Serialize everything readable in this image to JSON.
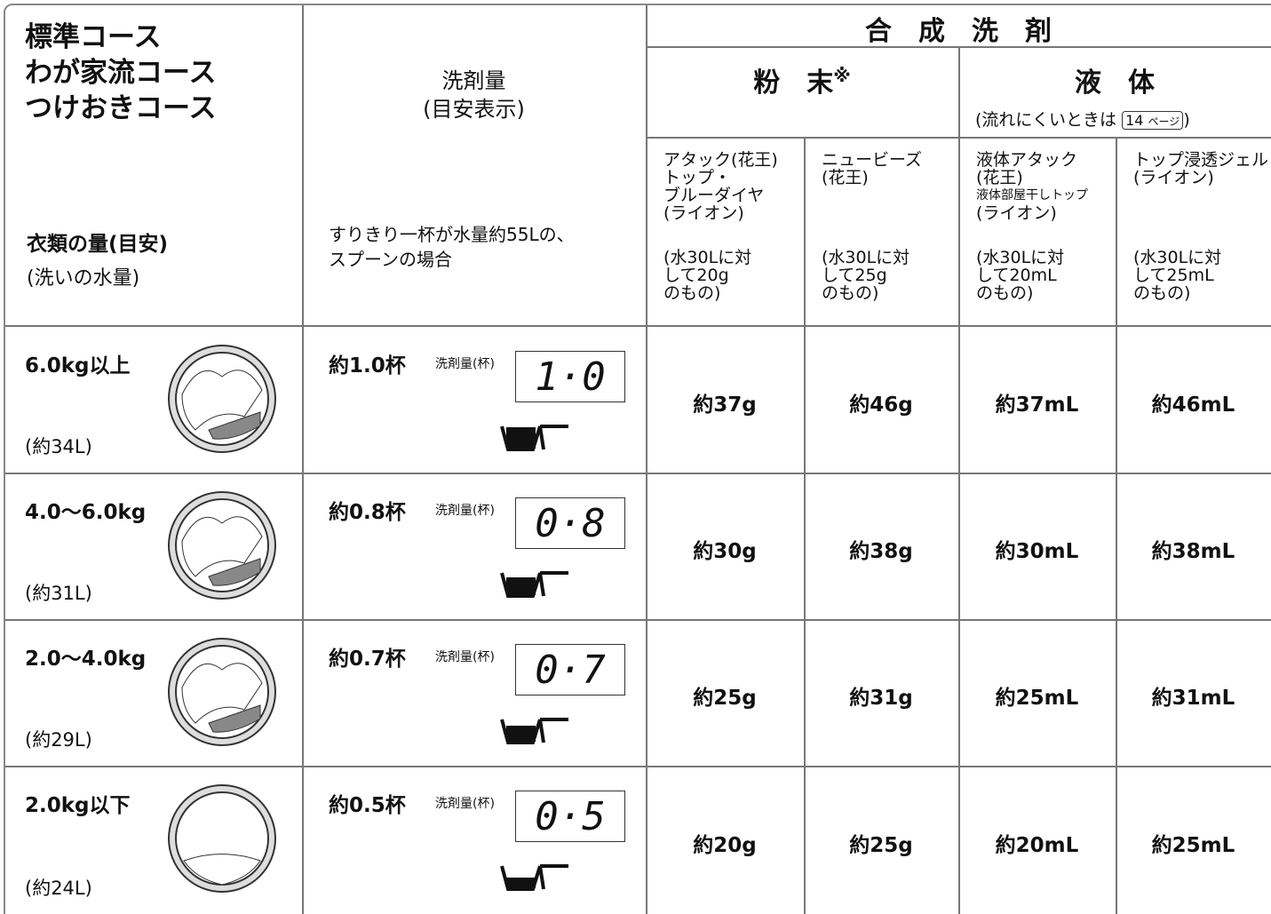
{
  "header": {
    "courses": [
      "標準コース",
      "わが家流コース",
      "つけおきコース"
    ],
    "load_label": "衣類の量(目安)",
    "load_sub": "(洗いの水量)",
    "amount_title": "洗剤量",
    "amount_sub": "(目安表示)",
    "amount_note": [
      "すりきり一杯が水量約55Lの、",
      "スプーンの場合"
    ],
    "synthetic": "合　成　洗　剤",
    "powder": "粉　末",
    "powder_mark": "※",
    "liquid": "液　体",
    "liquid_note_prefix": "(流れにくいときは",
    "page_ref": "14",
    "page_ref_unit": "ページ",
    "liquid_note_suffix": ")",
    "products": [
      {
        "lines": [
          "アタック(花王)",
          "トップ・",
          "ブルーダイヤ",
          "(ライオン)"
        ],
        "spec": [
          "(水30Lに対",
          "して20g",
          "のもの)"
        ]
      },
      {
        "lines": [
          "ニュービーズ",
          "(花王)"
        ],
        "spec": [
          "(水30Lに対",
          "して25g",
          "のもの)"
        ]
      },
      {
        "lines": [
          "液体アタック",
          "(花王)",
          "液体部屋干しトップ",
          "(ライオン)"
        ],
        "spec": [
          "(水30Lに対",
          "して20mL",
          "のもの)"
        ]
      },
      {
        "lines": [
          "トップ浸透ジェル",
          "(ライオン)"
        ],
        "spec": [
          "(水30Lに対",
          "して25mL",
          "のもの)"
        ]
      }
    ]
  },
  "rows": [
    {
      "load": "6.0kg以上",
      "water": "(約34L)",
      "cups": "約1.0杯",
      "display_label": "洗剤量(杯)",
      "display": "1·0",
      "amounts": [
        "約37g",
        "約46g",
        "約37mL",
        "約46mL"
      ]
    },
    {
      "load": "4.0〜6.0kg",
      "water": "(約31L)",
      "cups": "約0.8杯",
      "display_label": "洗剤量(杯)",
      "display": "0·8",
      "amounts": [
        "約30g",
        "約38g",
        "約30mL",
        "約38mL"
      ]
    },
    {
      "load": "2.0〜4.0kg",
      "water": "(約29L)",
      "cups": "約0.7杯",
      "display_label": "洗剤量(杯)",
      "display": "0·7",
      "amounts": [
        "約25g",
        "約31g",
        "約25mL",
        "約31mL"
      ]
    },
    {
      "load": "2.0kg以下",
      "water": "(約24L)",
      "cups": "約0.5杯",
      "display_label": "洗剤量(杯)",
      "display": "0·5",
      "amounts": [
        "約20g",
        "約25g",
        "約20mL",
        "約25mL"
      ]
    }
  ]
}
